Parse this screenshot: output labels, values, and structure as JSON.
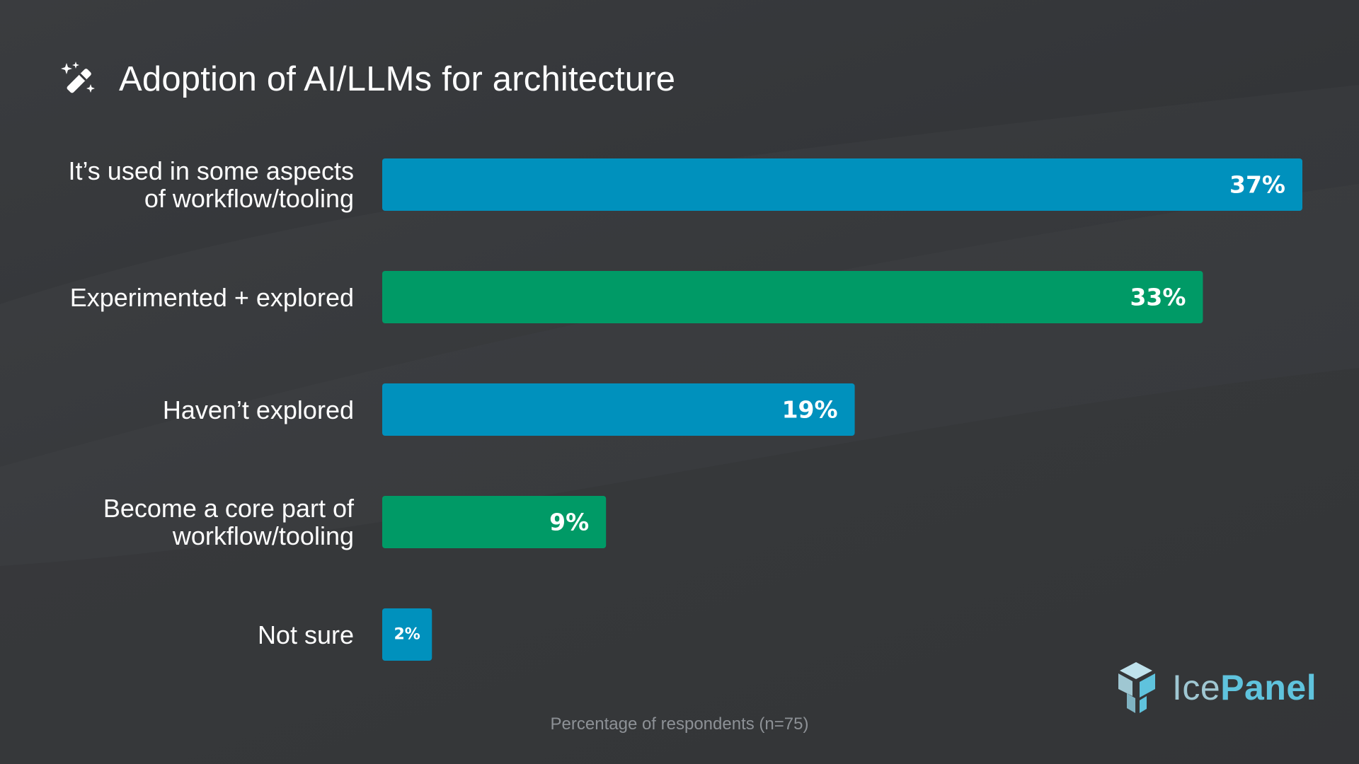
{
  "header": {
    "title": "Adoption of AI/LLMs for architecture",
    "icon": "magic-wand-icon"
  },
  "chart_data": {
    "type": "bar",
    "orientation": "horizontal",
    "title": "Adoption of AI/LLMs for architecture",
    "categories": [
      "It’s used in some aspects\nof workflow/tooling",
      "Experimented + explored",
      "Haven’t explored",
      "Become a core part of\nworkflow/tooling",
      "Not sure"
    ],
    "values": [
      37,
      33,
      19,
      9,
      2
    ],
    "value_labels": [
      "37%",
      "33%",
      "19%",
      "9%",
      "2%"
    ],
    "colors": [
      "#0091bd",
      "#009a66",
      "#0091bd",
      "#009a66",
      "#0091bd"
    ],
    "xlim": [
      0,
      37
    ],
    "grid": false,
    "legend": "none",
    "xlabel": "Percentage of respondents (n=75)"
  },
  "footer": {
    "note": "Percentage of respondents (n=75)"
  },
  "brand": {
    "name_part1": "Ice",
    "name_part2": "Panel",
    "icon": "icepanel-cube-icon",
    "color_light": "#9fc7d2",
    "color_accent": "#5fc3dd"
  }
}
